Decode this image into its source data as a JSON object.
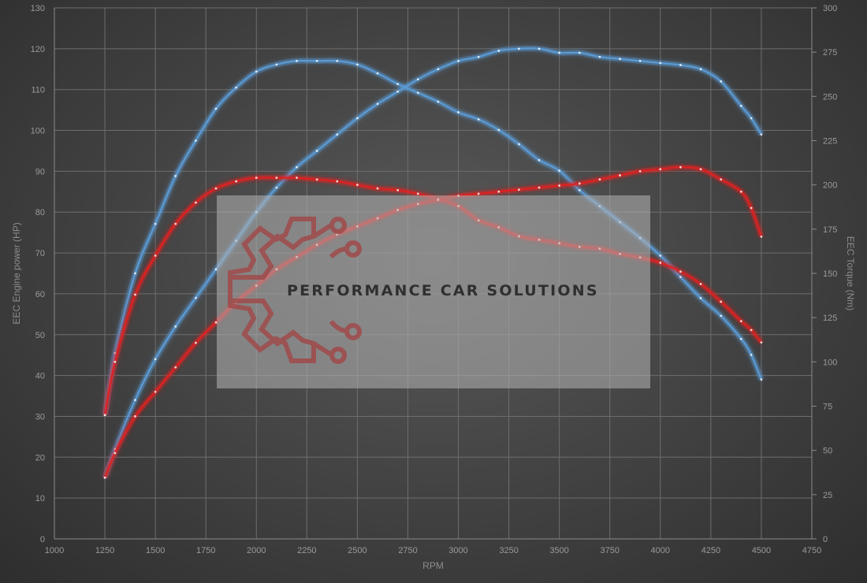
{
  "chart_data": {
    "type": "line",
    "xlabel": "RPM",
    "ylabel": "EEC Engine power (HP)",
    "y2label": "EEC Torque (Nm)",
    "xlim": [
      1000,
      4750
    ],
    "ylim": [
      0,
      130
    ],
    "y2lim": [
      0,
      300
    ],
    "xticks": [
      1000,
      1250,
      1500,
      1750,
      2000,
      2250,
      2500,
      2750,
      3000,
      3250,
      3500,
      3750,
      4000,
      4250,
      4500,
      4750
    ],
    "yticks": [
      0,
      10,
      20,
      30,
      40,
      50,
      60,
      70,
      80,
      90,
      100,
      110,
      120,
      130
    ],
    "y2ticks": [
      0,
      25,
      50,
      75,
      100,
      125,
      150,
      175,
      200,
      225,
      250,
      275,
      300
    ],
    "grid": true,
    "legend": "none",
    "watermark": "PERFORMANCE CAR SOLUTIONS",
    "series": [
      {
        "axis": "right",
        "color": "#5b9bd5",
        "x": [
          1250,
          1300,
          1400,
          1500,
          1600,
          1700,
          1800,
          1900,
          2000,
          2100,
          2200,
          2300,
          2400,
          2500,
          2600,
          2700,
          2800,
          2900,
          3000,
          3100,
          3200,
          3300,
          3400,
          3500,
          3600,
          3700,
          3800,
          3900,
          4000,
          4100,
          4200,
          4300,
          4400,
          4450,
          4500
        ],
        "values": [
          70,
          105,
          150,
          178,
          205,
          225,
          243,
          255,
          264,
          268,
          270,
          270,
          270,
          268,
          263,
          257,
          252,
          247,
          241,
          237,
          231,
          223,
          214,
          208,
          197,
          188,
          179,
          170,
          160,
          148,
          136,
          126,
          113,
          104,
          90
        ]
      },
      {
        "axis": "left",
        "color": "#5b9bd5",
        "x": [
          1250,
          1300,
          1400,
          1500,
          1600,
          1700,
          1800,
          1900,
          2000,
          2100,
          2200,
          2300,
          2400,
          2500,
          2600,
          2700,
          2800,
          2900,
          3000,
          3100,
          3200,
          3300,
          3400,
          3500,
          3600,
          3700,
          3800,
          3900,
          4000,
          4100,
          4200,
          4300,
          4400,
          4450,
          4500
        ],
        "values": [
          15,
          22,
          34,
          44,
          52,
          59,
          66,
          73,
          80,
          86,
          91,
          95,
          99,
          103,
          106.5,
          109.5,
          112.5,
          115,
          117,
          118,
          119.5,
          120,
          120,
          119,
          119,
          118,
          117.5,
          117,
          116.5,
          116,
          115,
          112,
          106,
          103,
          99
        ]
      },
      {
        "axis": "right",
        "color": "#e02020",
        "x": [
          1250,
          1300,
          1400,
          1500,
          1600,
          1700,
          1800,
          1900,
          2000,
          2100,
          2200,
          2300,
          2400,
          2500,
          2600,
          2700,
          2800,
          2900,
          3000,
          3100,
          3200,
          3300,
          3400,
          3500,
          3600,
          3700,
          3800,
          3900,
          4000,
          4100,
          4200,
          4300,
          4400,
          4450,
          4500
        ],
        "values": [
          70,
          100,
          138,
          160,
          178,
          190,
          198,
          202,
          204,
          204,
          204,
          203,
          202,
          200,
          198,
          197,
          195,
          192,
          188,
          180,
          176,
          171,
          169,
          167,
          165,
          164,
          161,
          159,
          156,
          151,
          144,
          134,
          123,
          118,
          111
        ]
      },
      {
        "axis": "left",
        "color": "#e02020",
        "x": [
          1250,
          1300,
          1400,
          1500,
          1600,
          1700,
          1800,
          1900,
          2000,
          2100,
          2200,
          2300,
          2400,
          2500,
          2600,
          2700,
          2800,
          2900,
          3000,
          3100,
          3200,
          3300,
          3400,
          3500,
          3600,
          3700,
          3800,
          3900,
          4000,
          4100,
          4200,
          4300,
          4400,
          4450,
          4500
        ],
        "values": [
          15,
          21,
          30,
          36,
          42,
          48,
          53,
          58,
          62,
          66,
          69,
          72,
          74.5,
          76.5,
          78.5,
          80.5,
          82,
          83,
          84,
          84.5,
          85,
          85.5,
          86,
          86.5,
          87,
          88,
          89,
          90,
          90.5,
          91,
          90.5,
          88,
          85,
          81,
          74
        ]
      }
    ]
  }
}
